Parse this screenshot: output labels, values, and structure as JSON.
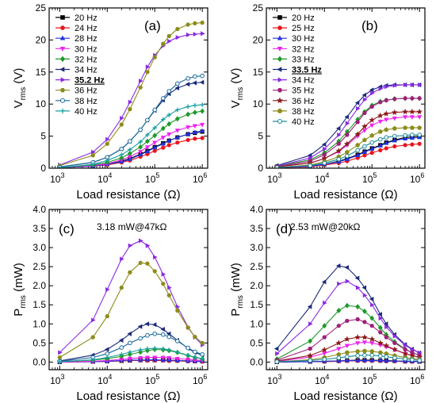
{
  "figure": {
    "background": "#ffffff"
  },
  "chart_data": [
    {
      "panel": "(a)",
      "type": "line",
      "xscale": "log",
      "xlim": [
        600,
        1300000
      ],
      "ylim": [
        0,
        25
      ],
      "yticks": [
        0,
        5,
        10,
        15,
        20,
        25
      ],
      "ylabel_main": "V",
      "ylabel_sub": "rms",
      "ylabel_unit": " (V)",
      "xlabel": "Load resistance (Ω)",
      "legend_position": "top-left",
      "annotation": "",
      "x": [
        1000,
        5000,
        10000,
        20000,
        30000,
        50000,
        70000,
        100000,
        150000,
        200000,
        300000,
        500000,
        700000,
        1000000
      ],
      "series": [
        {
          "name": "20 Hz",
          "color": "#000000",
          "marker": "square",
          "values": [
            0.1,
            0.3,
            0.6,
            1.1,
            1.5,
            2.2,
            2.7,
            3.3,
            3.9,
            4.3,
            4.8,
            5.3,
            5.5,
            5.7
          ]
        },
        {
          "name": "24 Hz",
          "color": "#e8141b",
          "marker": "circle",
          "values": [
            0.1,
            0.3,
            0.5,
            0.9,
            1.2,
            1.8,
            2.2,
            2.7,
            3.2,
            3.6,
            4.0,
            4.4,
            4.6,
            4.7
          ]
        },
        {
          "name": "28 Hz",
          "color": "#2233dd",
          "marker": "triangle-up",
          "values": [
            0.1,
            0.3,
            0.6,
            1.0,
            1.4,
            2.1,
            2.6,
            3.2,
            3.8,
            4.3,
            4.8,
            5.3,
            5.6,
            5.8
          ]
        },
        {
          "name": "30 Hz",
          "color": "#ee22ee",
          "marker": "triangle-down",
          "values": [
            0.1,
            0.4,
            0.7,
            1.3,
            1.8,
            2.6,
            3.3,
            4.0,
            4.8,
            5.3,
            5.9,
            6.4,
            6.6,
            6.8
          ]
        },
        {
          "name": "32 Hz",
          "color": "#1c9a2a",
          "marker": "diamond",
          "values": [
            0.1,
            0.5,
            0.9,
            1.6,
            2.3,
            3.3,
            4.2,
            5.1,
            6.2,
            6.9,
            7.7,
            8.4,
            8.7,
            8.9
          ]
        },
        {
          "name": "34 Hz",
          "color": "#1a2a7a",
          "marker": "triangle-left",
          "values": [
            0.2,
            0.9,
            1.7,
            3.0,
            4.2,
            6.0,
            7.5,
            9.0,
            10.6,
            11.6,
            12.5,
            13.1,
            13.3,
            13.4
          ]
        },
        {
          "name": "35.2 Hz",
          "color": "#8a2be2",
          "marker": "triangle-right",
          "bold_underline": true,
          "values": [
            0.5,
            2.5,
            4.5,
            7.8,
            10.3,
            13.6,
            15.8,
            17.6,
            19.1,
            19.8,
            20.4,
            20.8,
            20.9,
            21.0
          ]
        },
        {
          "name": "36 Hz",
          "color": "#8c8c1a",
          "marker": "hexagon",
          "values": [
            0.4,
            2.0,
            3.8,
            6.8,
            9.2,
            12.6,
            15.0,
            17.3,
            19.4,
            20.6,
            21.7,
            22.4,
            22.6,
            22.7
          ]
        },
        {
          "name": "38 Hz",
          "color": "#1a6a9a",
          "marker": "circle-open",
          "values": [
            0.2,
            0.9,
            1.7,
            3.0,
            4.2,
            6.0,
            7.5,
            9.1,
            10.9,
            12.0,
            13.2,
            14.0,
            14.3,
            14.4
          ]
        },
        {
          "name": "40 Hz",
          "color": "#18a0a0",
          "marker": "plus",
          "values": [
            0.1,
            0.6,
            1.2,
            2.1,
            2.9,
            4.1,
            5.2,
            6.3,
            7.6,
            8.3,
            9.1,
            9.6,
            9.8,
            9.9
          ]
        }
      ]
    },
    {
      "panel": "(b)",
      "type": "line",
      "xscale": "log",
      "xlim": [
        600,
        1300000
      ],
      "ylim": [
        0,
        25
      ],
      "yticks": [
        0,
        5,
        10,
        15,
        20,
        25
      ],
      "ylabel_main": "V",
      "ylabel_sub": "rms",
      "ylabel_unit": " (V)",
      "xlabel": "Load resistance (Ω)",
      "legend_position": "top-left",
      "annotation": "",
      "x": [
        1000,
        5000,
        10000,
        20000,
        30000,
        50000,
        70000,
        100000,
        150000,
        200000,
        300000,
        500000,
        700000,
        1000000
      ],
      "series": [
        {
          "name": "20 Hz",
          "color": "#000000",
          "marker": "square",
          "values": [
            0.1,
            0.3,
            0.6,
            1.1,
            1.5,
            2.1,
            2.6,
            3.1,
            3.6,
            4.0,
            4.4,
            4.8,
            4.9,
            5.0
          ]
        },
        {
          "name": "25 Hz",
          "color": "#e8141b",
          "marker": "circle",
          "values": [
            0.1,
            0.2,
            0.5,
            0.8,
            1.1,
            1.6,
            2.0,
            2.4,
            2.8,
            3.1,
            3.4,
            3.6,
            3.7,
            3.8
          ]
        },
        {
          "name": "30 Hz",
          "color": "#2233dd",
          "marker": "triangle-up",
          "values": [
            0.1,
            0.3,
            0.6,
            1.0,
            1.4,
            2.0,
            2.5,
            3.0,
            3.5,
            3.9,
            4.3,
            4.6,
            4.7,
            4.8
          ]
        },
        {
          "name": "32 Hz",
          "color": "#ee22ee",
          "marker": "triangle-down",
          "values": [
            0.2,
            0.8,
            1.5,
            2.6,
            3.6,
            5.0,
            5.9,
            6.7,
            7.3,
            7.6,
            7.8,
            8.0,
            8.0,
            8.0
          ]
        },
        {
          "name": "33 Hz",
          "color": "#1c9a2a",
          "marker": "diamond",
          "values": [
            0.3,
            1.3,
            2.4,
            4.2,
            5.7,
            7.6,
            8.8,
            9.8,
            10.4,
            10.6,
            10.8,
            10.9,
            10.9,
            10.9
          ]
        },
        {
          "name": "33.5 Hz",
          "color": "#1a2a7a",
          "marker": "triangle-left",
          "bold_underline": true,
          "values": [
            0.4,
            2.0,
            3.7,
            6.2,
            8.0,
            10.2,
            11.4,
            12.2,
            12.7,
            12.9,
            13.0,
            13.0,
            13.0,
            13.0
          ]
        },
        {
          "name": "34 Hz",
          "color": "#8a2be2",
          "marker": "triangle-right",
          "values": [
            0.3,
            1.6,
            3.0,
            5.2,
            7.0,
            9.3,
            10.7,
            11.7,
            12.4,
            12.7,
            12.9,
            13.0,
            13.0,
            13.0
          ]
        },
        {
          "name": "35 Hz",
          "color": "#a0207a",
          "marker": "hexagon",
          "values": [
            0.2,
            1.1,
            2.1,
            3.8,
            5.2,
            7.2,
            8.6,
            9.6,
            10.3,
            10.6,
            10.8,
            10.9,
            10.9,
            10.9
          ]
        },
        {
          "name": "36 Hz",
          "color": "#8b1a1a",
          "marker": "star",
          "values": [
            0.2,
            0.8,
            1.5,
            2.7,
            3.8,
            5.3,
            6.5,
            7.5,
            8.2,
            8.5,
            8.7,
            8.8,
            8.8,
            8.8
          ]
        },
        {
          "name": "38 Hz",
          "color": "#8c8c1a",
          "marker": "pentagon",
          "values": [
            0.1,
            0.5,
            1.0,
            1.8,
            2.5,
            3.6,
            4.4,
            5.1,
            5.7,
            6.0,
            6.2,
            6.3,
            6.3,
            6.3
          ]
        },
        {
          "name": "40 Hz",
          "color": "#1a8a9a",
          "marker": "circle-open",
          "values": [
            0.1,
            0.4,
            0.8,
            1.4,
            1.9,
            2.8,
            3.4,
            4.0,
            4.5,
            4.8,
            5.0,
            5.1,
            5.2,
            5.2
          ]
        }
      ]
    },
    {
      "panel": "(c)",
      "type": "line",
      "xscale": "log",
      "xlim": [
        600,
        1300000
      ],
      "ylim": [
        -0.2,
        4.0
      ],
      "yticks": [
        0.0,
        0.5,
        1.0,
        1.5,
        2.0,
        2.5,
        3.0,
        3.5,
        4.0
      ],
      "ylabel_main": "P",
      "ylabel_sub": "rms",
      "ylabel_unit": " (mW)",
      "xlabel": "Load resistance (Ω)",
      "annotation": "3.18 mW@47kΩ",
      "x": [
        1000,
        5000,
        10000,
        20000,
        30000,
        50000,
        70000,
        100000,
        150000,
        200000,
        300000,
        500000,
        700000,
        1000000
      ],
      "series": [
        {
          "name": "20 Hz",
          "color": "#000000",
          "marker": "square",
          "values": [
            0.0,
            0.01,
            0.02,
            0.03,
            0.04,
            0.05,
            0.05,
            0.05,
            0.05,
            0.05,
            0.04,
            0.03,
            0.02,
            0.02
          ]
        },
        {
          "name": "24 Hz",
          "color": "#e8141b",
          "marker": "circle",
          "values": [
            0.0,
            0.01,
            0.02,
            0.03,
            0.04,
            0.04,
            0.04,
            0.04,
            0.04,
            0.03,
            0.03,
            0.02,
            0.02,
            0.01
          ]
        },
        {
          "name": "28 Hz",
          "color": "#2233dd",
          "marker": "triangle-up",
          "values": [
            0.0,
            0.01,
            0.02,
            0.04,
            0.05,
            0.05,
            0.06,
            0.06,
            0.05,
            0.05,
            0.04,
            0.03,
            0.02,
            0.02
          ]
        },
        {
          "name": "30 Hz",
          "color": "#ee22ee",
          "marker": "triangle-down",
          "values": [
            0.0,
            0.02,
            0.04,
            0.07,
            0.09,
            0.11,
            0.12,
            0.12,
            0.12,
            0.11,
            0.09,
            0.07,
            0.05,
            0.04
          ]
        },
        {
          "name": "32 Hz",
          "color": "#1c9a2a",
          "marker": "diamond",
          "values": [
            0.01,
            0.05,
            0.09,
            0.15,
            0.2,
            0.26,
            0.3,
            0.33,
            0.32,
            0.3,
            0.25,
            0.17,
            0.12,
            0.08
          ]
        },
        {
          "name": "34 Hz",
          "color": "#1a2a7a",
          "marker": "triangle-left",
          "values": [
            0.03,
            0.18,
            0.33,
            0.57,
            0.74,
            0.93,
            1.0,
            0.98,
            0.86,
            0.74,
            0.57,
            0.36,
            0.25,
            0.18
          ]
        },
        {
          "name": "35.2 Hz",
          "color": "#8a2be2",
          "marker": "triangle-right",
          "values": [
            0.25,
            1.1,
            1.9,
            2.7,
            3.05,
            3.18,
            3.05,
            2.75,
            2.3,
            1.95,
            1.45,
            0.92,
            0.65,
            0.45
          ]
        },
        {
          "name": "36 Hz",
          "color": "#8c8c1a",
          "marker": "hexagon",
          "values": [
            0.12,
            0.65,
            1.2,
            1.95,
            2.35,
            2.6,
            2.58,
            2.38,
            2.05,
            1.75,
            1.35,
            0.9,
            0.66,
            0.5
          ]
        },
        {
          "name": "38 Hz",
          "color": "#1a6a9a",
          "marker": "circle-open",
          "values": [
            0.02,
            0.12,
            0.22,
            0.38,
            0.5,
            0.62,
            0.7,
            0.74,
            0.72,
            0.66,
            0.55,
            0.37,
            0.27,
            0.2
          ]
        },
        {
          "name": "40 Hz",
          "color": "#18a0a0",
          "marker": "plus",
          "values": [
            0.01,
            0.06,
            0.12,
            0.2,
            0.26,
            0.32,
            0.35,
            0.36,
            0.35,
            0.32,
            0.26,
            0.18,
            0.13,
            0.09
          ]
        }
      ]
    },
    {
      "panel": "(d)",
      "type": "line",
      "xscale": "log",
      "xlim": [
        600,
        1300000
      ],
      "ylim": [
        -0.2,
        4.0
      ],
      "yticks": [
        0.0,
        0.5,
        1.0,
        1.5,
        2.0,
        2.5,
        3.0,
        3.5,
        4.0
      ],
      "ylabel_main": "P",
      "ylabel_sub": "rms",
      "ylabel_unit": " (mW)",
      "xlabel": "Load resistance (Ω)",
      "annotation": "2.53 mW@20kΩ",
      "x": [
        1000,
        5000,
        10000,
        20000,
        30000,
        50000,
        70000,
        100000,
        150000,
        200000,
        300000,
        500000,
        700000,
        1000000
      ],
      "series": [
        {
          "name": "20 Hz",
          "color": "#000000",
          "marker": "square",
          "values": [
            0.0,
            0.01,
            0.02,
            0.03,
            0.04,
            0.05,
            0.05,
            0.05,
            0.04,
            0.04,
            0.03,
            0.02,
            0.02,
            0.01
          ]
        },
        {
          "name": "25 Hz",
          "color": "#e8141b",
          "marker": "circle",
          "values": [
            0.0,
            0.01,
            0.01,
            0.02,
            0.03,
            0.03,
            0.03,
            0.03,
            0.03,
            0.02,
            0.02,
            0.01,
            0.01,
            0.01
          ]
        },
        {
          "name": "30 Hz",
          "color": "#2233dd",
          "marker": "triangle-up",
          "values": [
            0.0,
            0.01,
            0.02,
            0.03,
            0.04,
            0.04,
            0.04,
            0.04,
            0.04,
            0.03,
            0.03,
            0.02,
            0.02,
            0.01
          ]
        },
        {
          "name": "32 Hz",
          "color": "#ee22ee",
          "marker": "triangle-down",
          "values": [
            0.02,
            0.13,
            0.23,
            0.35,
            0.43,
            0.5,
            0.52,
            0.5,
            0.45,
            0.4,
            0.32,
            0.22,
            0.17,
            0.12
          ]
        },
        {
          "name": "33 Hz",
          "color": "#1c9a2a",
          "marker": "diamond",
          "values": [
            0.08,
            0.55,
            0.95,
            1.35,
            1.48,
            1.45,
            1.33,
            1.15,
            0.9,
            0.72,
            0.53,
            0.34,
            0.25,
            0.18
          ]
        },
        {
          "name": "33.5 Hz",
          "color": "#1a2a7a",
          "marker": "triangle-left",
          "values": [
            0.35,
            1.45,
            2.1,
            2.52,
            2.48,
            2.2,
            1.95,
            1.65,
            1.25,
            1.0,
            0.72,
            0.46,
            0.34,
            0.24
          ]
        },
        {
          "name": "34 Hz",
          "color": "#8a2be2",
          "marker": "triangle-right",
          "values": [
            0.22,
            1.0,
            1.55,
            2.05,
            2.12,
            1.95,
            1.75,
            1.5,
            1.15,
            0.92,
            0.68,
            0.44,
            0.33,
            0.24
          ]
        },
        {
          "name": "35 Hz",
          "color": "#a0207a",
          "marker": "hexagon",
          "values": [
            0.05,
            0.35,
            0.65,
            0.95,
            1.08,
            1.12,
            1.05,
            0.95,
            0.78,
            0.65,
            0.5,
            0.33,
            0.25,
            0.18
          ]
        },
        {
          "name": "36 Hz",
          "color": "#8b1a1a",
          "marker": "star",
          "values": [
            0.03,
            0.17,
            0.32,
            0.5,
            0.6,
            0.65,
            0.65,
            0.6,
            0.5,
            0.43,
            0.33,
            0.22,
            0.17,
            0.12
          ]
        },
        {
          "name": "38 Hz",
          "color": "#8c8c1a",
          "marker": "pentagon",
          "values": [
            0.01,
            0.06,
            0.12,
            0.2,
            0.25,
            0.28,
            0.29,
            0.28,
            0.25,
            0.22,
            0.17,
            0.12,
            0.09,
            0.07
          ]
        },
        {
          "name": "40 Hz",
          "color": "#1a8a9a",
          "marker": "circle-open",
          "values": [
            0.01,
            0.04,
            0.07,
            0.11,
            0.14,
            0.17,
            0.18,
            0.18,
            0.16,
            0.14,
            0.11,
            0.08,
            0.06,
            0.04
          ]
        }
      ]
    }
  ]
}
